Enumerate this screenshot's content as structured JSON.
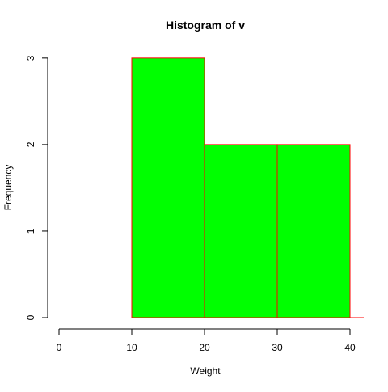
{
  "chart_data": {
    "type": "bar",
    "title": "Histogram of v",
    "xlabel": "Weight",
    "ylabel": "Frequency",
    "bins": [
      {
        "start": 10,
        "end": 20,
        "count": 3
      },
      {
        "start": 20,
        "end": 30,
        "count": 2
      },
      {
        "start": 30,
        "end": 40,
        "count": 2
      }
    ],
    "xlim": [
      0,
      42
    ],
    "ylim": [
      0,
      3.12
    ],
    "x_ticks": [
      "0",
      "10",
      "20",
      "30",
      "40"
    ],
    "y_ticks": [
      "0",
      "1",
      "2",
      "3"
    ],
    "grid": false,
    "bar_fill": "#00ff00",
    "bar_border": "#ff0000"
  }
}
